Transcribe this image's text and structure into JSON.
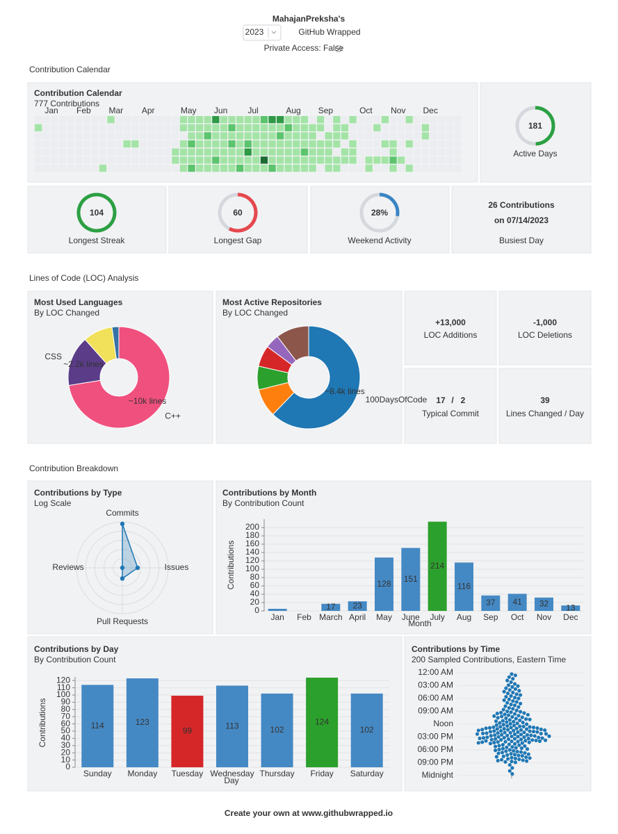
{
  "header": {
    "user": "MahajanPreksha's",
    "year": "2023",
    "title": "GitHub Wrapped",
    "access": "Private Access: False"
  },
  "sections": [
    "Contribution Calendar",
    "Lines of Code (LOC) Analysis",
    "Contribution Breakdown"
  ],
  "calendar": {
    "title": "Contribution Calendar",
    "subtitle": "777 Contributions",
    "months": [
      "Jan",
      "Feb",
      "Mar",
      "Apr",
      "May",
      "Jun",
      "Jul",
      "Aug",
      "Sep",
      "Oct",
      "Nov",
      "Dec"
    ],
    "colors": [
      "#ebedf0",
      "#a3e4a6",
      "#5cc46c",
      "#2e9a45",
      "#1d6b32"
    ],
    "weeks": [
      [
        0,
        1,
        0,
        0,
        0,
        0,
        0
      ],
      [
        0,
        0,
        0,
        0,
        0,
        0,
        0
      ],
      [
        0,
        0,
        0,
        0,
        0,
        0,
        0
      ],
      [
        0,
        0,
        0,
        0,
        0,
        0,
        0
      ],
      [
        0,
        0,
        0,
        0,
        0,
        0,
        0
      ],
      [
        0,
        0,
        0,
        0,
        0,
        0,
        0
      ],
      [
        0,
        0,
        0,
        0,
        0,
        0,
        0
      ],
      [
        0,
        0,
        0,
        0,
        0,
        0,
        0
      ],
      [
        0,
        0,
        0,
        0,
        0,
        0,
        1
      ],
      [
        1,
        0,
        0,
        0,
        0,
        0,
        0
      ],
      [
        0,
        0,
        0,
        0,
        0,
        0,
        0
      ],
      [
        0,
        0,
        0,
        1,
        0,
        0,
        0
      ],
      [
        0,
        0,
        0,
        1,
        0,
        0,
        0
      ],
      [
        0,
        0,
        0,
        0,
        0,
        0,
        0
      ],
      [
        0,
        0,
        0,
        0,
        0,
        0,
        0
      ],
      [
        0,
        0,
        0,
        0,
        0,
        0,
        0
      ],
      [
        0,
        0,
        0,
        0,
        0,
        0,
        0
      ],
      [
        0,
        0,
        0,
        0,
        1,
        1,
        0
      ],
      [
        1,
        1,
        0,
        1,
        1,
        1,
        1
      ],
      [
        1,
        1,
        1,
        2,
        1,
        1,
        2
      ],
      [
        1,
        1,
        1,
        1,
        1,
        1,
        1
      ],
      [
        1,
        1,
        2,
        1,
        1,
        1,
        1
      ],
      [
        3,
        1,
        1,
        1,
        1,
        2,
        1
      ],
      [
        1,
        1,
        1,
        1,
        1,
        1,
        1
      ],
      [
        1,
        2,
        1,
        2,
        1,
        1,
        1
      ],
      [
        1,
        1,
        1,
        1,
        1,
        1,
        2
      ],
      [
        1,
        1,
        1,
        2,
        3,
        1,
        1
      ],
      [
        1,
        1,
        1,
        1,
        1,
        1,
        1
      ],
      [
        2,
        1,
        1,
        1,
        1,
        4,
        1
      ],
      [
        3,
        1,
        1,
        1,
        1,
        1,
        2
      ],
      [
        3,
        1,
        2,
        1,
        1,
        1,
        1
      ],
      [
        1,
        2,
        1,
        1,
        1,
        1,
        1
      ],
      [
        1,
        1,
        1,
        1,
        1,
        1,
        1
      ],
      [
        1,
        1,
        1,
        1,
        2,
        1,
        1
      ],
      [
        0,
        1,
        1,
        1,
        1,
        1,
        1
      ],
      [
        1,
        1,
        0,
        1,
        1,
        1,
        0
      ],
      [
        0,
        0,
        1,
        1,
        1,
        1,
        1
      ],
      [
        1,
        1,
        1,
        1,
        0,
        1,
        1
      ],
      [
        0,
        1,
        1,
        0,
        1,
        1,
        0
      ],
      [
        1,
        0,
        0,
        1,
        1,
        1,
        0
      ],
      [
        0,
        0,
        0,
        0,
        0,
        0,
        0
      ],
      [
        0,
        0,
        0,
        0,
        0,
        1,
        1
      ],
      [
        0,
        1,
        0,
        0,
        0,
        1,
        0
      ],
      [
        1,
        0,
        0,
        1,
        0,
        1,
        0
      ],
      [
        0,
        0,
        0,
        1,
        1,
        2,
        1
      ],
      [
        0,
        0,
        0,
        0,
        0,
        1,
        0
      ],
      [
        1,
        0,
        0,
        1,
        0,
        0,
        1
      ],
      [
        0,
        0,
        0,
        0,
        0,
        0,
        0
      ],
      [
        0,
        1,
        1,
        0,
        0,
        0,
        0
      ],
      [
        0,
        0,
        0,
        0,
        0,
        0,
        0
      ],
      [
        0,
        0,
        0,
        0,
        0,
        0,
        0
      ],
      [
        0,
        0,
        0,
        0,
        0,
        0,
        0
      ],
      [
        0,
        0,
        0,
        0,
        0,
        0,
        0
      ]
    ]
  },
  "stats": {
    "active_days": {
      "value": 181,
      "label": "Active Days",
      "color": "#2ca043"
    },
    "longest_streak": {
      "value": 104,
      "label": "Longest Streak",
      "color": "#2ca043"
    },
    "longest_gap": {
      "value": 60,
      "label": "Longest Gap",
      "color": "#e5484d"
    },
    "weekend": {
      "value": 28,
      "text": "28%",
      "label": "Weekend Activity",
      "color": "#3a85c4"
    },
    "busiest": {
      "count": "26 Contributions",
      "date": "on 07/14/2023",
      "label": "Busiest Day"
    }
  },
  "loc": {
    "additions": {
      "value": "+13,000",
      "label": "LOC Additions"
    },
    "deletions": {
      "value": "-1,000",
      "label": "LOC Deletions"
    },
    "typical": {
      "add": "17",
      "sep": "/",
      "del": "2",
      "label": "Typical Commit"
    },
    "per_day": {
      "value": "39",
      "label": "Lines Changed / Day"
    }
  },
  "chart_data": [
    {
      "type": "pie",
      "title": "Most Used Languages",
      "subtitle": "By LOC Changed",
      "categories": [
        "C++",
        "CSS",
        null,
        null
      ],
      "values": [
        10000,
        2200,
        1300,
        300
      ],
      "value_labels": [
        "~10k lines",
        "~2.2k lines",
        null,
        null
      ],
      "colors": [
        "#f0507e",
        "#5b3c88",
        "#f1e05a",
        "#3572a5"
      ]
    },
    {
      "type": "pie",
      "title": "Most Active Repositories",
      "subtitle": "By LOC Changed",
      "categories": [
        "100DaysOfCode",
        null,
        null,
        null,
        null,
        null
      ],
      "values": [
        8400,
        1200,
        1000,
        900,
        600,
        1400
      ],
      "value_labels": [
        "~8.4k lines",
        null,
        null,
        null,
        null,
        null
      ],
      "colors": [
        "#1f77b4",
        "#ff7f0e",
        "#2ca02c",
        "#d62728",
        "#9467bd",
        "#8c564b"
      ]
    },
    {
      "type": "radar",
      "title": "Contributions by Type",
      "subtitle": "Log Scale",
      "categories": [
        "Commits",
        "Issues",
        "Pull Requests",
        "Reviews"
      ],
      "values": [
        750,
        10,
        5,
        1
      ],
      "rlim": [
        1,
        1000
      ],
      "log": true,
      "color": "#1f77b4"
    },
    {
      "type": "bar",
      "title": "Contributions by Month",
      "subtitle": "By Contribution Count",
      "categories": [
        "Jan",
        "Feb",
        "March",
        "April",
        "May",
        "June",
        "July",
        "Aug",
        "Sep",
        "Oct",
        "Nov",
        "Dec"
      ],
      "values": [
        5,
        0,
        17,
        23,
        128,
        151,
        214,
        116,
        37,
        41,
        32,
        13
      ],
      "colors": [
        "#4589c4",
        "#4589c4",
        "#4589c4",
        "#4589c4",
        "#4589c4",
        "#4589c4",
        "#2ca02c",
        "#4589c4",
        "#4589c4",
        "#4589c4",
        "#4589c4",
        "#4589c4"
      ],
      "ylim": [
        0,
        220
      ],
      "yticks": [
        0,
        20,
        40,
        60,
        80,
        100,
        120,
        140,
        160,
        180,
        200
      ],
      "xlabel": "Month",
      "ylabel": "Contributions",
      "grid": true
    },
    {
      "type": "bar",
      "title": "Contributions by Day",
      "subtitle": "By Contribution Count",
      "categories": [
        "Sunday",
        "Monday",
        "Tuesday",
        "Wednesday",
        "Thursday",
        "Friday",
        "Saturday"
      ],
      "values": [
        114,
        123,
        99,
        113,
        102,
        124,
        102
      ],
      "colors": [
        "#4589c4",
        "#4589c4",
        "#d62728",
        "#4589c4",
        "#4589c4",
        "#2ca02c",
        "#4589c4"
      ],
      "ylim": [
        0,
        125
      ],
      "yticks": [
        0,
        10,
        20,
        30,
        40,
        50,
        60,
        70,
        80,
        90,
        100,
        110,
        120
      ],
      "xlabel": "Day",
      "ylabel": "Contributions",
      "grid": true
    },
    {
      "type": "swarm",
      "title": "Contributions by Time",
      "subtitle": "200 Sampled Contributions, Eastern Time",
      "color": "#1f77b4",
      "ylim": [
        0,
        24
      ],
      "yticks": [
        {
          "value": 0,
          "label": "12:00 AM"
        },
        {
          "value": 3,
          "label": "03:00 AM"
        },
        {
          "value": 6,
          "label": "06:00 AM"
        },
        {
          "value": 9,
          "label": "09:00 AM"
        },
        {
          "value": 12,
          "label": "Noon"
        },
        {
          "value": 15,
          "label": "03:00 PM"
        },
        {
          "value": 18,
          "label": "06:00 PM"
        },
        {
          "value": 21,
          "label": "09:00 PM"
        },
        {
          "value": 24,
          "label": "Midnight"
        }
      ],
      "values": [
        0.3,
        0.6,
        1.0,
        1.4,
        1.8,
        2.2,
        2.6,
        2.9,
        3.1,
        3.3,
        3.6,
        3.8,
        4.0,
        4.2,
        4.4,
        4.6,
        4.8,
        5.0,
        5.2,
        5.4,
        5.6,
        5.8,
        6.0,
        6.2,
        6.4,
        6.6,
        6.8,
        7.0,
        7.2,
        7.4,
        7.6,
        7.8,
        8.0,
        8.2,
        8.4,
        8.6,
        8.8,
        9.0,
        9.1,
        9.2,
        9.3,
        9.4,
        9.5,
        9.6,
        9.7,
        9.8,
        9.9,
        10.0,
        10.1,
        10.2,
        10.3,
        10.4,
        10.5,
        10.6,
        10.7,
        10.8,
        10.9,
        11.0,
        11.1,
        11.2,
        11.3,
        11.4,
        11.5,
        11.6,
        11.7,
        11.8,
        11.9,
        12.0,
        12.1,
        12.2,
        12.3,
        12.4,
        12.5,
        12.6,
        12.7,
        12.8,
        12.9,
        13.0,
        13.1,
        13.2,
        13.3,
        13.4,
        13.5,
        13.6,
        13.7,
        13.8,
        13.9,
        14.0,
        14.1,
        14.2,
        14.3,
        14.4,
        14.5,
        14.6,
        14.7,
        14.8,
        14.9,
        15.0,
        15.1,
        15.2,
        15.3,
        15.4,
        15.5,
        15.6,
        15.7,
        15.8,
        15.9,
        16.0,
        16.1,
        16.2,
        16.3,
        16.4,
        16.5,
        16.6,
        16.7,
        16.8,
        16.9,
        17.0,
        17.1,
        17.2,
        17.3,
        17.4,
        17.5,
        17.6,
        17.7,
        17.8,
        17.9,
        18.0,
        18.1,
        18.2,
        18.3,
        18.4,
        18.5,
        18.6,
        18.7,
        18.8,
        18.9,
        19.0,
        19.1,
        19.2,
        19.3,
        19.4,
        19.5,
        19.6,
        19.7,
        19.8,
        19.9,
        20.0,
        20.1,
        20.2,
        20.3,
        20.4,
        20.5,
        20.6,
        20.7,
        20.8,
        20.9,
        12.55,
        12.65,
        12.75,
        12.85,
        12.95,
        13.05,
        13.15,
        13.25,
        13.35,
        13.45,
        13.55,
        13.65,
        13.75,
        13.85,
        13.95,
        14.05,
        14.15,
        14.25,
        14.35,
        14.45,
        14.55,
        14.65,
        14.75,
        14.85,
        14.95,
        15.05,
        15.15,
        15.25,
        15.35,
        15.45,
        15.55,
        15.65,
        15.75,
        15.85,
        15.95,
        16.05,
        16.15,
        16.25,
        16.35,
        21.5,
        22.2,
        22.9,
        23.6
      ]
    }
  ],
  "footer": "Create your own at www.githubwrapped.io"
}
